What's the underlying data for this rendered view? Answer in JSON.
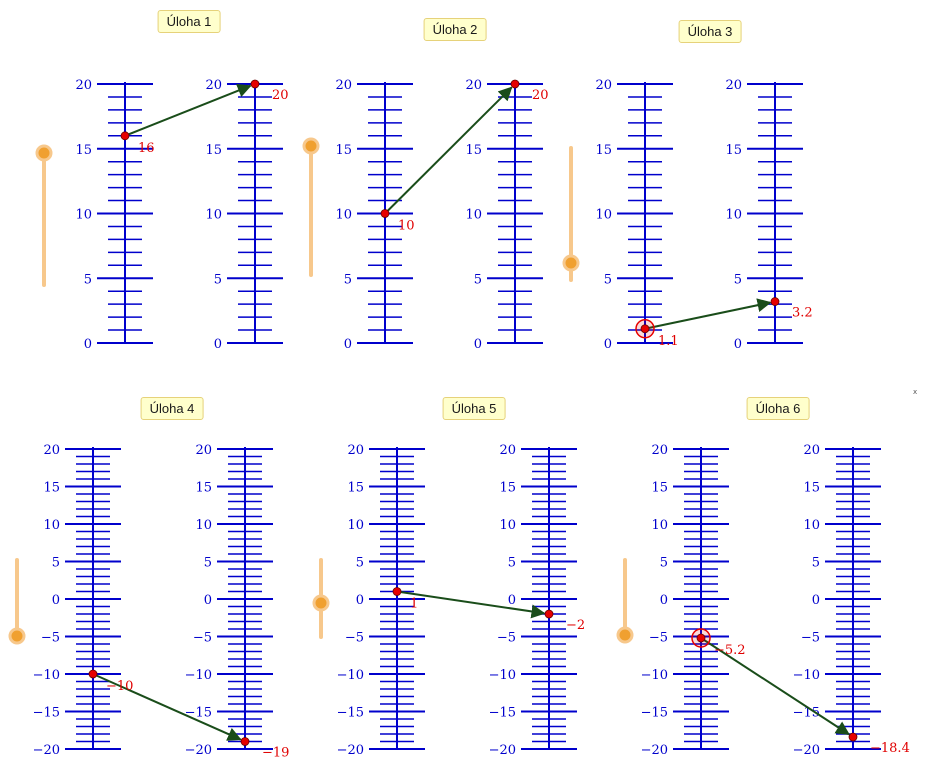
{
  "colors": {
    "axis": "#0000cc",
    "point": "#e60000",
    "arrow": "#1a4d1a",
    "slider_track": "#f7c88c",
    "slider_knob": "#f0a030",
    "label_bg": "#ffffcc"
  },
  "marker": "x",
  "tasks": [
    {
      "label": "Úloha 1",
      "axis_min": 0,
      "axis_max": 20,
      "major_ticks": [
        0,
        5,
        10,
        15,
        20
      ],
      "from_value": 16,
      "from_label": "16",
      "to_value": 20,
      "to_label": "20",
      "highlight_from": false,
      "slider_level": 0.87
    },
    {
      "label": "Úloha 2",
      "axis_min": 0,
      "axis_max": 20,
      "major_ticks": [
        0,
        5,
        10,
        15,
        20
      ],
      "from_value": 10,
      "from_label": "10",
      "to_value": 20,
      "to_label": "20",
      "highlight_from": false,
      "slider_level": 0.98
    },
    {
      "label": "Úloha 3",
      "axis_min": 0,
      "axis_max": 20,
      "major_ticks": [
        0,
        5,
        10,
        15,
        20
      ],
      "from_value": 1.1,
      "from_label": "1.1",
      "to_value": 3.2,
      "to_label": "3.2",
      "highlight_from": true,
      "slider_level": 0.12
    },
    {
      "label": "Úloha 4",
      "axis_min": -20,
      "axis_max": 20,
      "major_ticks": [
        -20,
        -15,
        -10,
        -5,
        0,
        5,
        10,
        15,
        20
      ],
      "from_value": -10,
      "from_label": "−10",
      "to_value": -19,
      "to_label": "−19",
      "highlight_from": false,
      "slider_level": 0.0
    },
    {
      "label": "Úloha 5",
      "axis_min": -20,
      "axis_max": 20,
      "major_ticks": [
        -20,
        -15,
        -10,
        -5,
        0,
        5,
        10,
        15,
        20
      ],
      "from_value": 1,
      "from_label": "1",
      "to_value": -2,
      "to_label": "−2",
      "highlight_from": false,
      "slider_level": 0.45
    },
    {
      "label": "Úloha 6",
      "axis_min": -20,
      "axis_max": 20,
      "major_ticks": [
        -20,
        -15,
        -10,
        -5,
        0,
        5,
        10,
        15,
        20
      ],
      "from_value": -5.2,
      "from_label": "−5.2",
      "to_value": -18.4,
      "to_label": "−18.4",
      "highlight_from": true,
      "slider_level": 0.0
    }
  ]
}
